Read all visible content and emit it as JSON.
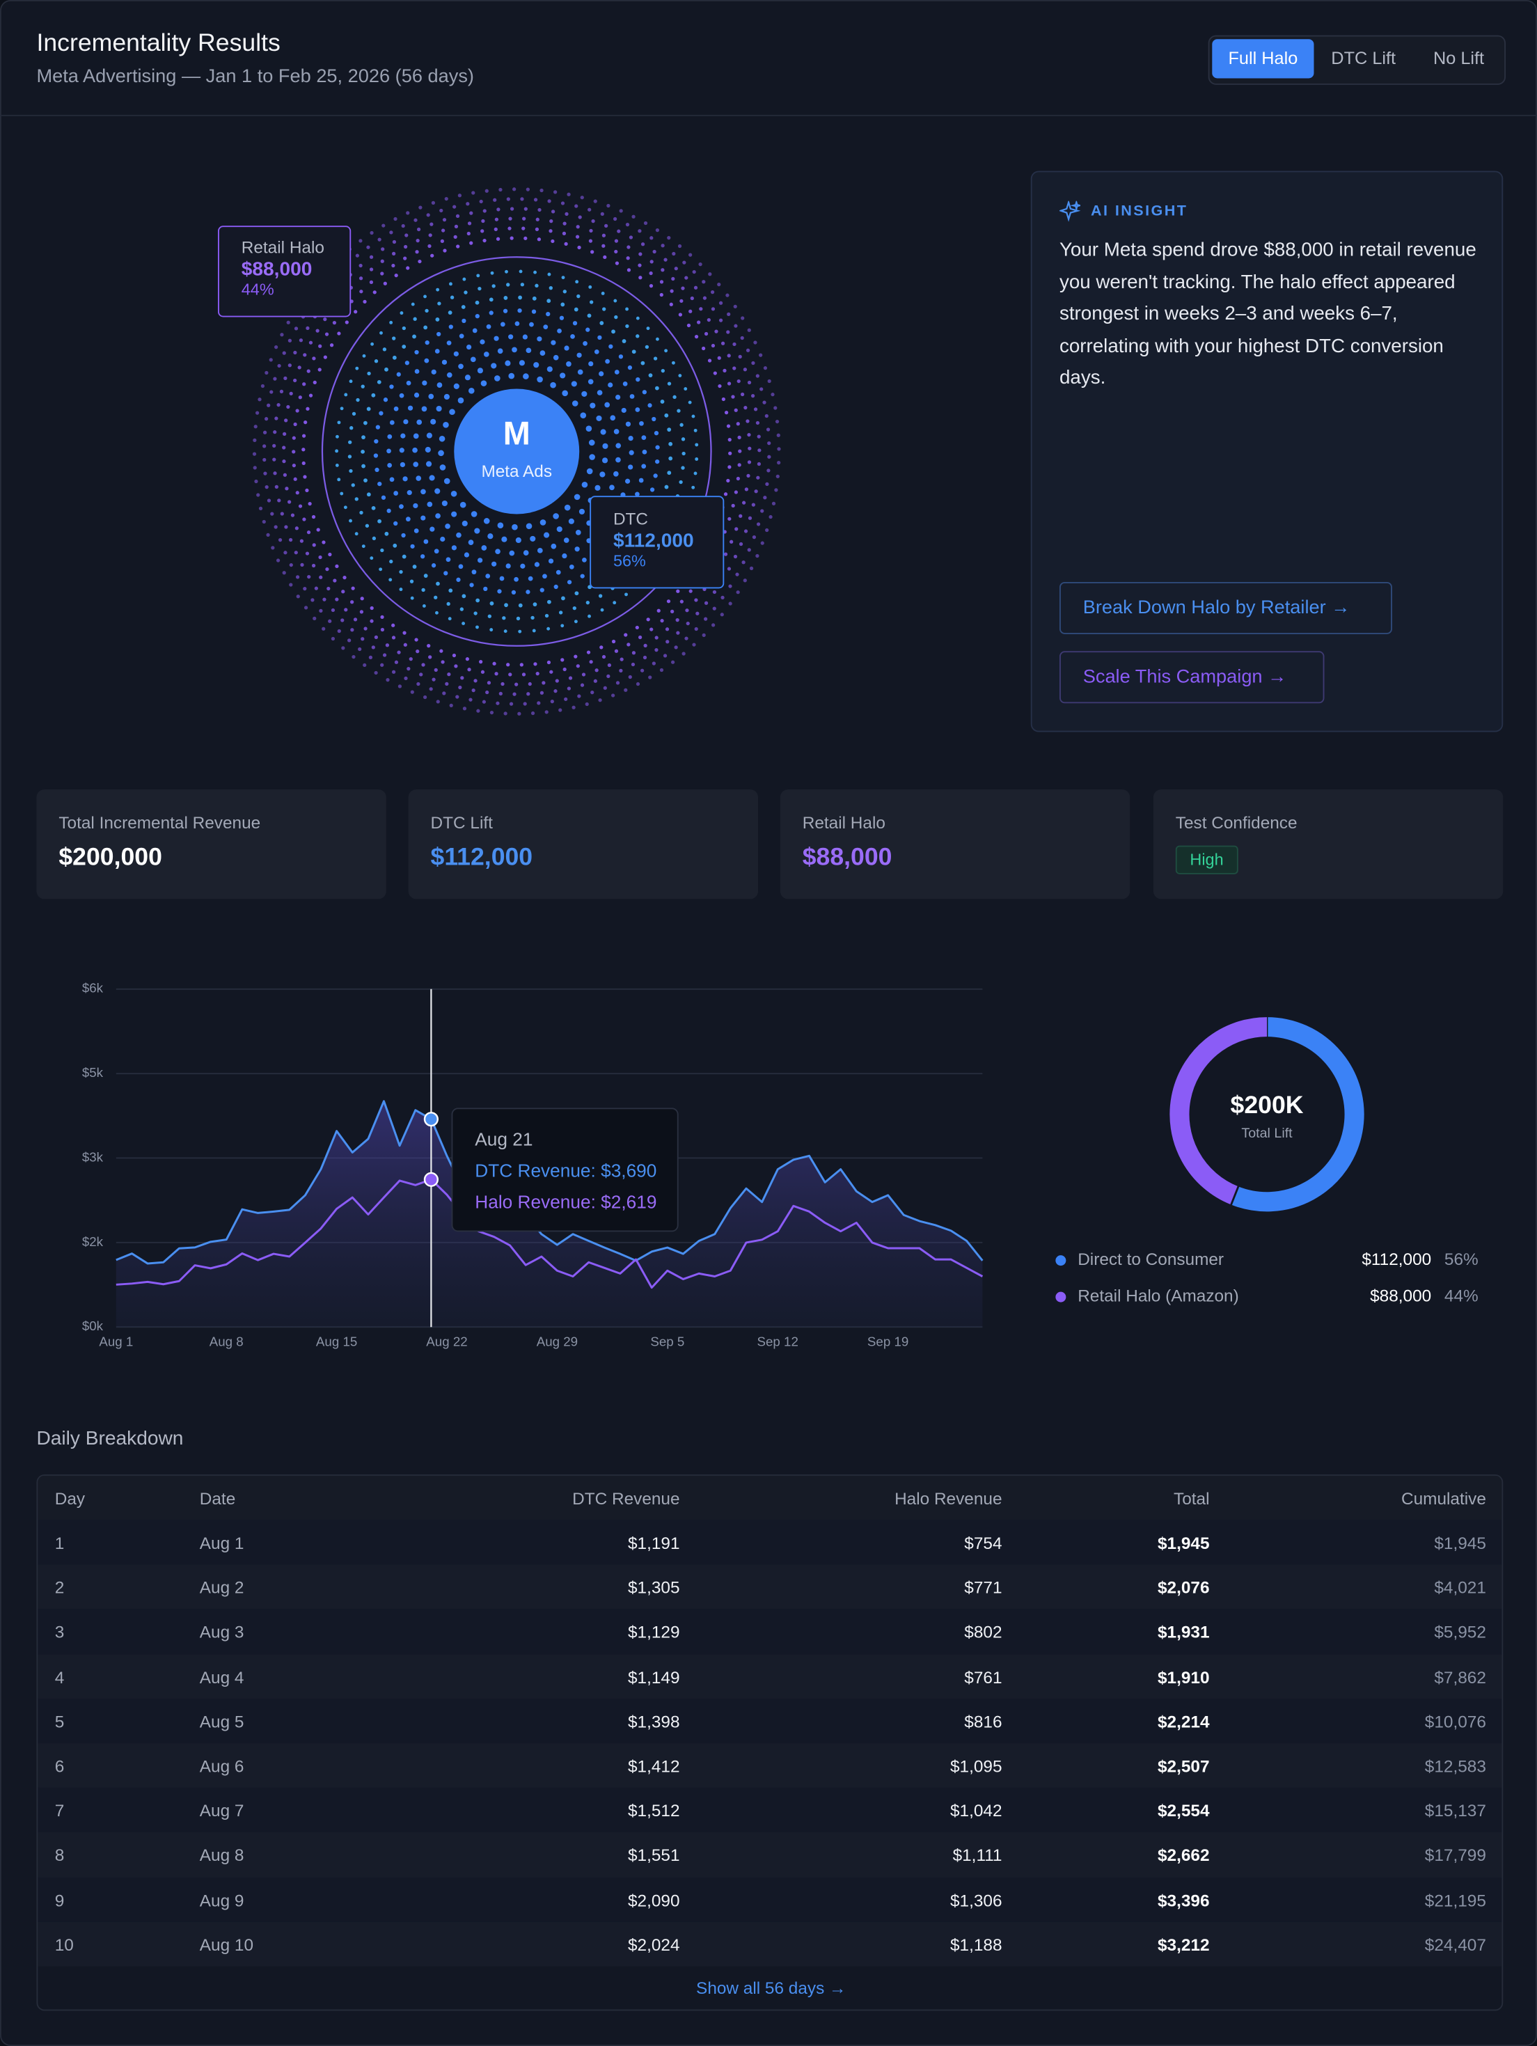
{
  "header": {
    "title": "Incrementality Results",
    "subtitle": "Meta Advertising — Jan 1 to Feb 25, 2026 (56 days)"
  },
  "toggle": [
    "Full Halo",
    "DTC Lift",
    "No Lift"
  ],
  "halo": {
    "center": {
      "icon": "M",
      "label": "Meta Ads"
    },
    "retail": {
      "name": "Retail Halo",
      "value": "$88,000",
      "share": "44%"
    },
    "dtc": {
      "name": "DTC",
      "value": "$112,000",
      "share": "56%"
    }
  },
  "insight": {
    "label": "AI INSIGHT",
    "text": "Your Meta spend drove $88,000 in retail revenue you weren't tracking. The halo effect appeared strongest in weeks 2–3 and weeks 6–7, correlating with your highest DTC conversion days.",
    "actions": [
      "Break Down Halo by Retailer →",
      "Scale This Campaign →"
    ]
  },
  "kpis": [
    {
      "label": "Total Incremental Revenue",
      "value": "$200,000"
    },
    {
      "label": "DTC Lift",
      "value": "$112,000"
    },
    {
      "label": "Retail Halo",
      "value": "$88,000"
    },
    {
      "label": "Test Confidence",
      "badge": "High"
    }
  ],
  "chart_data": [
    {
      "type": "line",
      "categories": [
        "Aug 1",
        null,
        null,
        null,
        null,
        null,
        null,
        "Aug 8",
        null,
        null,
        null,
        null,
        null,
        null,
        "Aug 15",
        null,
        null,
        null,
        null,
        null,
        null,
        "Aug 22",
        null,
        null,
        null,
        null,
        null,
        null,
        "Aug 29",
        null,
        null,
        null,
        null,
        null,
        null,
        "Sep 5",
        null,
        null,
        null,
        null,
        null,
        null,
        "Sep 12",
        null,
        null,
        null,
        null,
        null,
        null,
        "Sep 19",
        null,
        null,
        null,
        null,
        null,
        null
      ],
      "series": [
        {
          "name": "DTC Revenue",
          "color": "#4a8ff0",
          "values": [
            1191,
            1305,
            1129,
            1149,
            1398,
            1412,
            1512,
            1551,
            2090,
            2024,
            2050,
            2080,
            2340,
            2800,
            3480,
            3100,
            3340,
            4010,
            3220,
            3850,
            3690,
            3040,
            2460,
            2300,
            2200,
            2100,
            2000,
            1650,
            1460,
            1650,
            1530,
            1410,
            1300,
            1180,
            1340,
            1410,
            1300,
            1530,
            1650,
            2110,
            2460,
            2220,
            2800,
            2970,
            3040,
            2570,
            2800,
            2410,
            2220,
            2340,
            1990,
            1880,
            1810,
            1710,
            1530,
            1180
          ]
        },
        {
          "name": "Halo Revenue",
          "color": "#8b5cf6",
          "values": [
            754,
            771,
            802,
            761,
            816,
            1095,
            1042,
            1111,
            1306,
            1188,
            1300,
            1250,
            1500,
            1750,
            2100,
            2300,
            2000,
            2300,
            2600,
            2520,
            2619,
            2350,
            2000,
            1700,
            1600,
            1450,
            1100,
            1250,
            1000,
            900,
            1150,
            1050,
            950,
            1200,
            700,
            1000,
            850,
            950,
            900,
            1000,
            1500,
            1550,
            1700,
            2150,
            2050,
            1850,
            1700,
            1850,
            1500,
            1400,
            1400,
            1400,
            1200,
            1200,
            1050,
            900
          ]
        }
      ],
      "ylim": [
        0,
        6000
      ],
      "yticks": [
        {
          "value": 0,
          "label": "$0k"
        },
        {
          "value": 1500,
          "label": "$2k"
        },
        {
          "value": 3000,
          "label": "$3k"
        },
        {
          "value": 4500,
          "label": "$5k"
        },
        {
          "value": 6000,
          "label": "$6k"
        }
      ],
      "grid": true,
      "tooltip": {
        "title": "Aug 21",
        "lines": [
          "DTC Revenue: $3,690",
          "Halo Revenue: $2,619"
        ]
      }
    },
    {
      "type": "pie",
      "center_value": "$200K",
      "center_label": "Total Lift",
      "categories": [
        "Direct to Consumer",
        "Retail Halo (Amazon)"
      ],
      "values": [
        112000,
        88000
      ],
      "value_labels": [
        "$112,000",
        "$88,000"
      ],
      "shares": [
        56,
        44
      ],
      "share_labels": [
        "56%",
        "44%"
      ],
      "colors": [
        "#3b82f6",
        "#8b5cf6"
      ]
    }
  ],
  "table": {
    "title": "Daily Breakdown",
    "columns": [
      "Day",
      "Date",
      "DTC Revenue",
      "Halo Revenue",
      "Total",
      "Cumulative"
    ],
    "rows": [
      [
        "1",
        "Aug 1",
        "$1,191",
        "$754",
        "$1,945",
        "$1,945"
      ],
      [
        "2",
        "Aug 2",
        "$1,305",
        "$771",
        "$2,076",
        "$4,021"
      ],
      [
        "3",
        "Aug 3",
        "$1,129",
        "$802",
        "$1,931",
        "$5,952"
      ],
      [
        "4",
        "Aug 4",
        "$1,149",
        "$761",
        "$1,910",
        "$7,862"
      ],
      [
        "5",
        "Aug 5",
        "$1,398",
        "$816",
        "$2,214",
        "$10,076"
      ],
      [
        "6",
        "Aug 6",
        "$1,412",
        "$1,095",
        "$2,507",
        "$12,583"
      ],
      [
        "7",
        "Aug 7",
        "$1,512",
        "$1,042",
        "$2,554",
        "$15,137"
      ],
      [
        "8",
        "Aug 8",
        "$1,551",
        "$1,111",
        "$2,662",
        "$17,799"
      ],
      [
        "9",
        "Aug 9",
        "$2,090",
        "$1,306",
        "$3,396",
        "$21,195"
      ],
      [
        "10",
        "Aug 10",
        "$2,024",
        "$1,188",
        "$3,212",
        "$24,407"
      ]
    ],
    "footer": "Show all 56 days →"
  }
}
